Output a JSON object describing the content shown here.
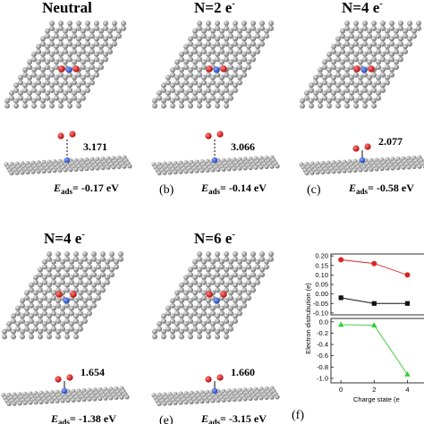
{
  "panels": [
    {
      "title_main": "Neutral",
      "distance": "3.171",
      "energy_symbol": "E",
      "energy_sub": "ads",
      "energy_value": "= -0.17 eV"
    },
    {
      "title_main": "N=2 e",
      "title_sup": "-",
      "distance": "3.066",
      "energy_symbol": "E",
      "energy_sub": "ads",
      "energy_value": "= -0.14 eV",
      "letter": "(b)"
    },
    {
      "title_main": "N=4 e",
      "title_sup": "-",
      "distance": "2.077",
      "energy_symbol": "E",
      "energy_sub": "ads",
      "energy_value": "= -0.58 eV",
      "letter": "(c)"
    },
    {
      "title_main": "N=4 e",
      "title_sup": "-",
      "distance": "1.654",
      "energy_symbol": "E",
      "energy_sub": "ads",
      "energy_value": "= -1.38 eV"
    },
    {
      "title_main": "N=6 e",
      "title_sup": "-",
      "distance": "1.660",
      "energy_symbol": "E",
      "energy_sub": "ads",
      "energy_value": "= -3.15 eV",
      "letter": "(e)"
    }
  ],
  "chart_letter": "(f)",
  "chart_data": [
    {
      "type": "line",
      "y_label": "Electron distrubution (e)",
      "x": [
        0,
        2,
        4
      ],
      "xlim": [
        -0.6,
        5.0
      ],
      "ylim": [
        -0.11,
        0.21
      ],
      "yticks": [
        {
          "value": 0.2,
          "label": "0.20"
        },
        0.15,
        {
          "value": 0.1,
          "label": "0.10"
        },
        0.05,
        {
          "value": 0.0,
          "label": "0.00"
        },
        -0.05,
        {
          "value": -0.1,
          "label": "-0.10"
        }
      ],
      "series": [
        {
          "color": "#111111",
          "marker": "square",
          "values": [
            -0.02,
            -0.05,
            -0.05
          ]
        },
        {
          "color": "#d62728",
          "marker": "circle",
          "values": [
            0.18,
            0.16,
            0.1
          ]
        }
      ]
    },
    {
      "type": "line",
      "x_label": "Charge state (e",
      "x": [
        0,
        2,
        4
      ],
      "xlim": [
        -0.6,
        5.0
      ],
      "xticks": [
        0,
        2,
        4
      ],
      "ylim": [
        -1.08,
        0.06
      ],
      "yticks": [
        {
          "value": 0.0,
          "label": "0.0"
        },
        -0.2,
        -0.4,
        -0.6,
        -0.8,
        {
          "value": -1.0,
          "label": "-1.0"
        }
      ],
      "series": [
        {
          "color": "#33cc33",
          "marker": "triangle",
          "values": [
            -0.05,
            -0.06,
            -0.93
          ]
        }
      ]
    }
  ]
}
